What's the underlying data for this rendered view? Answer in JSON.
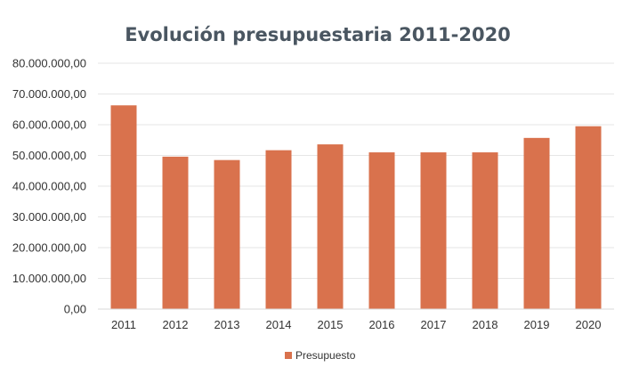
{
  "chart_data": {
    "type": "bar",
    "title": "Evolución presupuestaria 2011-2020",
    "xlabel": "",
    "ylabel": "",
    "categories": [
      "2011",
      "2012",
      "2013",
      "2014",
      "2015",
      "2016",
      "2017",
      "2018",
      "2019",
      "2020"
    ],
    "series": [
      {
        "name": "Presupuesto",
        "values": [
          66300000,
          49600000,
          48500000,
          51700000,
          53600000,
          51000000,
          51000000,
          51000000,
          55700000,
          59500000
        ],
        "color": "#d9724d"
      }
    ],
    "ylim": [
      0,
      80000000
    ],
    "yticks": [
      0,
      10000000,
      20000000,
      30000000,
      40000000,
      50000000,
      60000000,
      70000000,
      80000000
    ],
    "ytick_labels": [
      "0,00",
      "10.000.000,00",
      "20.000.000,00",
      "30.000.000,00",
      "40.000.000,00",
      "50.000.000,00",
      "60.000.000,00",
      "70.000.000,00",
      "80.000.000,00"
    ],
    "grid": true,
    "legend_position": "bottom",
    "colors": {
      "title": "#4a5661",
      "tick_text": "#333333",
      "gridline": "#e6e6e6",
      "axis": "#d9d9d9"
    }
  }
}
